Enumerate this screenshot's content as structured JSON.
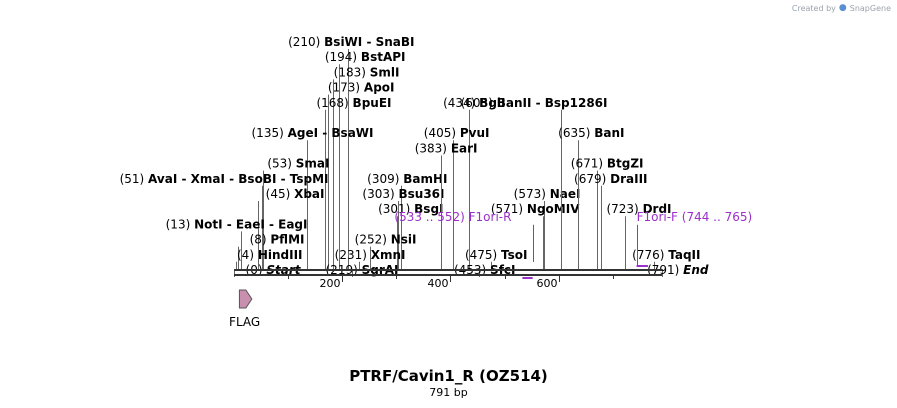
{
  "credit": {
    "text": "Created by",
    "brand": "SnapGene"
  },
  "title": "PTRF/Cavin1_R (OZ514)",
  "length_label": "791 bp",
  "sequence_length": 791,
  "axis_ticks": [
    "200",
    "400",
    "600"
  ],
  "sites": [
    {
      "name": "BsiWI - SnaBI",
      "pos_label": "(210)",
      "pos": 210,
      "row": 0
    },
    {
      "name": "BstAPI",
      "pos_label": "(194)",
      "pos": 194,
      "row": 1
    },
    {
      "name": "SmlI",
      "pos_label": "(183)",
      "pos": 183,
      "row": 2
    },
    {
      "name": "ApoI",
      "pos_label": "(173)",
      "pos": 173,
      "row": 3
    },
    {
      "name": "BpuEI",
      "pos_label": "(168)",
      "pos": 168,
      "row": 4
    },
    {
      "name": "AgeI - BsaWI",
      "pos_label": "(135)",
      "pos": 135,
      "row": 6
    },
    {
      "name": "SmaI",
      "pos_label": "(53)",
      "pos": 53,
      "row": 8
    },
    {
      "name": "AvaI - XmaI - BsoBI - TspMI",
      "pos_label": "(51)",
      "pos": 51,
      "row": 9
    },
    {
      "name": "XbaI",
      "pos_label": "(45)",
      "pos": 45,
      "row": 10
    },
    {
      "name": "NotI - EaeI - EagI",
      "pos_label": "(13)",
      "pos": 13,
      "row": 12
    },
    {
      "name": "PflMI",
      "pos_label": "(8)",
      "pos": 8,
      "row": 13
    },
    {
      "name": "HindIII",
      "pos_label": "(4)",
      "pos": 4,
      "row": 14
    },
    {
      "name": "Start",
      "pos_label": "(0)",
      "pos": 0,
      "row": 15,
      "italic": true
    },
    {
      "name": "BamHI",
      "pos_label": "(309)",
      "pos": 309,
      "row": 9
    },
    {
      "name": "Bsu36I",
      "pos_label": "(303)",
      "pos": 303,
      "row": 10
    },
    {
      "name": "BsgI",
      "pos_label": "(301)",
      "pos": 301,
      "row": 11
    },
    {
      "name": "NsiI",
      "pos_label": "(252)",
      "pos": 252,
      "row": 13
    },
    {
      "name": "XmnI",
      "pos_label": "(231)",
      "pos": 231,
      "row": 14
    },
    {
      "name": "SgrAI",
      "pos_label": "(219)",
      "pos": 219,
      "row": 15
    },
    {
      "name": "BglI",
      "pos_label": "(434)",
      "pos": 434,
      "row": 4
    },
    {
      "name": "PvuI",
      "pos_label": "(405)",
      "pos": 405,
      "row": 6
    },
    {
      "name": "EarI",
      "pos_label": "(383)",
      "pos": 383,
      "row": 7
    },
    {
      "name": "NaeI",
      "pos_label": "(573)",
      "pos": 573,
      "row": 10
    },
    {
      "name": "NgoMIV",
      "pos_label": "(571)",
      "pos": 571,
      "row": 11
    },
    {
      "name": "TsoI",
      "pos_label": "(475)",
      "pos": 475,
      "row": 14
    },
    {
      "name": "SfcI",
      "pos_label": "(453)",
      "pos": 453,
      "row": 15
    },
    {
      "name": "BanII - Bsp1286I",
      "pos_label": "(605)",
      "pos": 605,
      "row": 4
    },
    {
      "name": "BanI",
      "pos_label": "(635)",
      "pos": 635,
      "row": 6
    },
    {
      "name": "BtgZI",
      "pos_label": "(671)",
      "pos": 671,
      "row": 8
    },
    {
      "name": "DraIII",
      "pos_label": "(679)",
      "pos": 679,
      "row": 9
    },
    {
      "name": "DrdI",
      "pos_label": "(723)",
      "pos": 723,
      "row": 11
    },
    {
      "name": "TaqII",
      "pos_label": "(776)",
      "pos": 776,
      "row": 14
    },
    {
      "name": "End",
      "pos_label": "(791)",
      "pos": 791,
      "row": 15,
      "italic": true
    }
  ],
  "primers": [
    {
      "name": "F1ori-R",
      "range_label": "(533 .. 552)",
      "start": 533,
      "end": 552,
      "strand": "reverse"
    },
    {
      "name": "F1ori-F",
      "range_label": "(744 .. 765)",
      "start": 744,
      "end": 765,
      "strand": "forward"
    }
  ],
  "features": [
    {
      "name": "FLAG",
      "start": 10,
      "end": 33,
      "strand": "forward"
    }
  ],
  "colors": {
    "backbone": "#333333",
    "primer": "#9b30c9",
    "feature_fill": "#c98fae",
    "feature_stroke": "#555555"
  }
}
